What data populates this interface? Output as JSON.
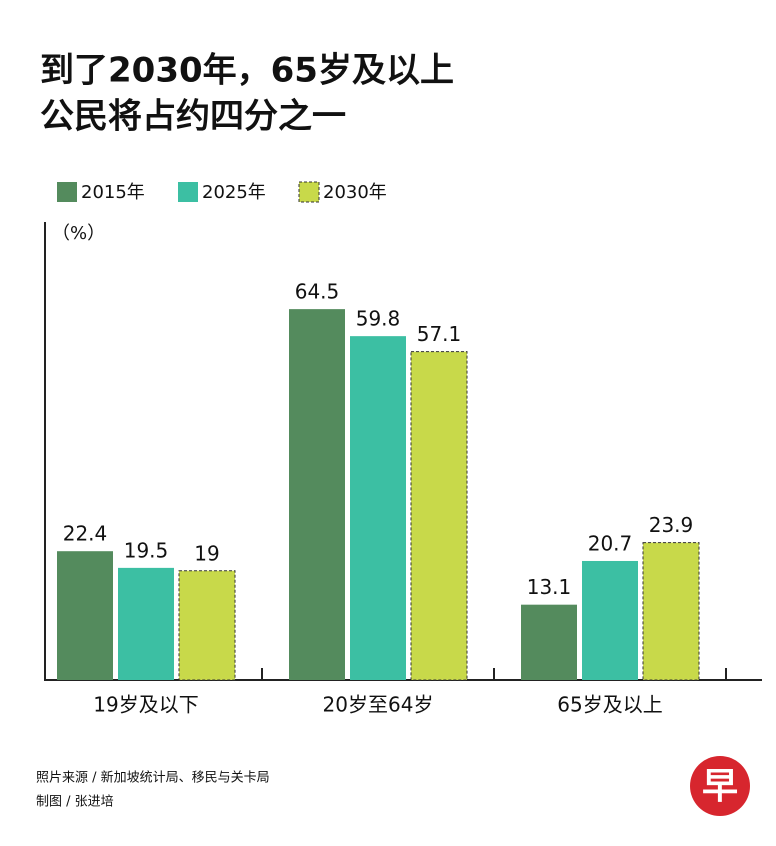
{
  "chart_data": {
    "type": "bar",
    "title": [
      "到了2030年，65岁及以上",
      "公民将占约四分之一"
    ],
    "y_label": "（%）",
    "categories": [
      "19岁及以下",
      "20岁至64岁",
      "65岁及以上"
    ],
    "series": [
      {
        "name": "2015年",
        "color": "#548b5d",
        "values": [
          22.4,
          64.5,
          13.1
        ]
      },
      {
        "name": "2025年",
        "color": "#3cbfa3",
        "values": [
          19.5,
          59.8,
          20.7
        ]
      },
      {
        "name": "2030年",
        "color": "#c8d94a",
        "values": [
          19,
          57.1,
          23.9
        ]
      }
    ],
    "ylim": [
      0,
      80
    ],
    "grid": false
  },
  "footer": {
    "source": "照片来源 / 新加坡统计局、移民与关卡局",
    "credit": "制图 / 张进培",
    "logo": "早"
  }
}
